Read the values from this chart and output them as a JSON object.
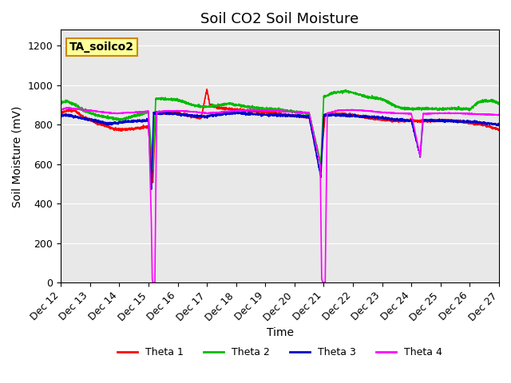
{
  "title": "Soil CO2 Soil Moisture",
  "xlabel": "Time",
  "ylabel": "Soil Moisture (mV)",
  "annotation_text": "TA_soilco2",
  "ylim": [
    0,
    1280
  ],
  "yticks": [
    0,
    200,
    400,
    600,
    800,
    1000,
    1200
  ],
  "x_total": 15.0,
  "xtick_positions": [
    0,
    1,
    2,
    3,
    4,
    5,
    6,
    7,
    8,
    9,
    10,
    11,
    12,
    13,
    14,
    15
  ],
  "xtick_labels": [
    "Dec 12",
    "Dec 13",
    "Dec 14",
    "Dec 15",
    "Dec 16",
    "Dec 17",
    "Dec 18",
    "Dec 19",
    "Dec 20",
    "Dec 21",
    "Dec 22",
    "Dec 23",
    "Dec 24",
    "Dec 25",
    "Dec 26",
    "Dec 27"
  ],
  "color_t1": "#ff0000",
  "color_t2": "#00bb00",
  "color_t3": "#0000cc",
  "color_t4": "#ff00ff",
  "legend_labels": [
    "Theta 1",
    "Theta 2",
    "Theta 3",
    "Theta 4"
  ],
  "bg_color": "#e8e8e8",
  "title_fontsize": 13,
  "axis_fontsize": 10,
  "tick_fontsize": 9,
  "annotation_bg": "#ffff99",
  "annotation_edge": "#cc8800",
  "lw": 1.2,
  "kp_t1": [
    [
      0,
      860
    ],
    [
      0.2,
      870
    ],
    [
      0.5,
      870
    ],
    [
      0.8,
      835
    ],
    [
      1.0,
      825
    ],
    [
      1.2,
      810
    ],
    [
      1.5,
      795
    ],
    [
      1.8,
      780
    ],
    [
      2.0,
      775
    ],
    [
      2.2,
      775
    ],
    [
      2.5,
      780
    ],
    [
      2.8,
      785
    ],
    [
      3.0,
      790
    ],
    [
      3.15,
      510
    ],
    [
      3.25,
      862
    ],
    [
      3.5,
      860
    ],
    [
      3.8,
      860
    ],
    [
      4.0,
      858
    ],
    [
      4.8,
      832
    ],
    [
      5.0,
      980
    ],
    [
      5.1,
      900
    ],
    [
      5.4,
      885
    ],
    [
      5.8,
      880
    ],
    [
      6.0,
      875
    ],
    [
      6.5,
      870
    ],
    [
      7.0,
      862
    ],
    [
      7.5,
      855
    ],
    [
      8.0,
      845
    ],
    [
      8.5,
      838
    ],
    [
      8.9,
      600
    ],
    [
      9.05,
      852
    ],
    [
      9.5,
      855
    ],
    [
      10.0,
      850
    ],
    [
      10.5,
      835
    ],
    [
      11.0,
      825
    ],
    [
      11.5,
      820
    ],
    [
      12.0,
      820
    ],
    [
      12.5,
      818
    ],
    [
      13.0,
      822
    ],
    [
      13.5,
      820
    ],
    [
      14.0,
      808
    ],
    [
      14.5,
      798
    ],
    [
      15.0,
      775
    ]
  ],
  "kp_t2": [
    [
      0,
      910
    ],
    [
      0.2,
      920
    ],
    [
      0.5,
      900
    ],
    [
      0.8,
      870
    ],
    [
      1.0,
      860
    ],
    [
      1.2,
      850
    ],
    [
      1.5,
      840
    ],
    [
      1.8,
      830
    ],
    [
      2.0,
      825
    ],
    [
      2.2,
      830
    ],
    [
      2.5,
      845
    ],
    [
      2.8,
      855
    ],
    [
      3.0,
      862
    ],
    [
      3.15,
      575
    ],
    [
      3.25,
      930
    ],
    [
      3.5,
      932
    ],
    [
      3.8,
      928
    ],
    [
      4.0,
      925
    ],
    [
      4.5,
      900
    ],
    [
      4.8,
      892
    ],
    [
      5.0,
      890
    ],
    [
      5.2,
      895
    ],
    [
      5.5,
      900
    ],
    [
      5.8,
      908
    ],
    [
      6.0,
      900
    ],
    [
      6.5,
      888
    ],
    [
      7.0,
      880
    ],
    [
      7.5,
      878
    ],
    [
      8.0,
      865
    ],
    [
      8.5,
      858
    ],
    [
      8.9,
      605
    ],
    [
      9.0,
      940
    ],
    [
      9.3,
      960
    ],
    [
      9.5,
      965
    ],
    [
      9.8,
      970
    ],
    [
      10.0,
      960
    ],
    [
      10.3,
      948
    ],
    [
      10.5,
      940
    ],
    [
      11.0,
      930
    ],
    [
      11.5,
      890
    ],
    [
      11.8,
      882
    ],
    [
      12.0,
      880
    ],
    [
      12.5,
      882
    ],
    [
      12.8,
      880
    ],
    [
      13.0,
      878
    ],
    [
      13.5,
      882
    ],
    [
      14.0,
      878
    ],
    [
      14.3,
      915
    ],
    [
      14.5,
      920
    ],
    [
      14.8,
      920
    ],
    [
      15.0,
      908
    ]
  ],
  "kp_t3": [
    [
      0,
      845
    ],
    [
      0.2,
      850
    ],
    [
      0.5,
      840
    ],
    [
      0.8,
      830
    ],
    [
      1.0,
      825
    ],
    [
      1.2,
      818
    ],
    [
      1.4,
      812
    ],
    [
      1.5,
      808
    ],
    [
      1.6,
      805
    ],
    [
      1.8,
      808
    ],
    [
      2.0,
      810
    ],
    [
      2.2,
      815
    ],
    [
      2.5,
      818
    ],
    [
      2.8,
      820
    ],
    [
      3.0,
      822
    ],
    [
      3.1,
      472
    ],
    [
      3.17,
      858
    ],
    [
      3.5,
      858
    ],
    [
      3.8,
      856
    ],
    [
      4.0,
      854
    ],
    [
      4.3,
      848
    ],
    [
      4.5,
      845
    ],
    [
      4.8,
      842
    ],
    [
      5.0,
      840
    ],
    [
      5.1,
      845
    ],
    [
      5.3,
      850
    ],
    [
      5.5,
      853
    ],
    [
      5.8,
      858
    ],
    [
      6.0,
      860
    ],
    [
      6.5,
      855
    ],
    [
      7.0,
      850
    ],
    [
      7.5,
      848
    ],
    [
      8.0,
      845
    ],
    [
      8.5,
      840
    ],
    [
      8.9,
      535
    ],
    [
      9.0,
      848
    ],
    [
      9.5,
      848
    ],
    [
      10.0,
      845
    ],
    [
      10.5,
      840
    ],
    [
      11.0,
      835
    ],
    [
      11.5,
      825
    ],
    [
      12.0,
      820
    ],
    [
      12.3,
      640
    ],
    [
      12.4,
      822
    ],
    [
      12.5,
      822
    ],
    [
      13.0,
      820
    ],
    [
      13.5,
      818
    ],
    [
      14.0,
      815
    ],
    [
      14.5,
      808
    ],
    [
      15.0,
      800
    ]
  ],
  "kp_t4": [
    [
      0,
      875
    ],
    [
      0.2,
      885
    ],
    [
      0.5,
      880
    ],
    [
      0.8,
      875
    ],
    [
      1.0,
      872
    ],
    [
      1.2,
      868
    ],
    [
      1.5,
      862
    ],
    [
      1.8,
      858
    ],
    [
      2.0,
      858
    ],
    [
      2.2,
      860
    ],
    [
      2.5,
      862
    ],
    [
      2.8,
      865
    ],
    [
      3.0,
      868
    ],
    [
      3.1,
      300
    ],
    [
      3.13,
      20
    ],
    [
      3.15,
      0
    ],
    [
      3.22,
      0
    ],
    [
      3.28,
      862
    ],
    [
      3.5,
      868
    ],
    [
      3.8,
      870
    ],
    [
      4.0,
      870
    ],
    [
      4.3,
      868
    ],
    [
      4.5,
      865
    ],
    [
      4.8,
      862
    ],
    [
      5.0,
      858
    ],
    [
      5.2,
      860
    ],
    [
      5.4,
      862
    ],
    [
      5.6,
      865
    ],
    [
      5.8,
      868
    ],
    [
      6.0,
      870
    ],
    [
      6.5,
      875
    ],
    [
      7.0,
      872
    ],
    [
      7.5,
      868
    ],
    [
      8.0,
      865
    ],
    [
      8.5,
      860
    ],
    [
      8.88,
      600
    ],
    [
      8.93,
      20
    ],
    [
      8.97,
      0
    ],
    [
      9.05,
      0
    ],
    [
      9.12,
      858
    ],
    [
      9.5,
      872
    ],
    [
      10.0,
      875
    ],
    [
      10.5,
      870
    ],
    [
      11.0,
      862
    ],
    [
      11.5,
      858
    ],
    [
      12.0,
      855
    ],
    [
      12.3,
      640
    ],
    [
      12.4,
      856
    ],
    [
      12.5,
      855
    ],
    [
      13.0,
      858
    ],
    [
      13.5,
      858
    ],
    [
      14.0,
      855
    ],
    [
      14.5,
      852
    ],
    [
      15.0,
      850
    ]
  ]
}
